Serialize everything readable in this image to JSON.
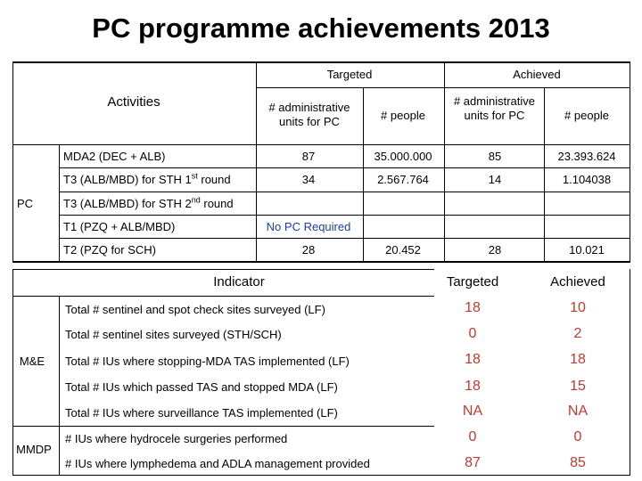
{
  "title": "PC programme achievements 2013",
  "pc_table": {
    "header": {
      "activities": "Activities",
      "targeted": "Targeted",
      "achieved": "Achieved",
      "admin_units": "# administrative units for PC",
      "people": "# people"
    },
    "section_label": "PC",
    "rows": [
      {
        "activity": "MDA2 (DEC + ALB)",
        "t_units": "87",
        "t_people": "35.000.000",
        "a_units": "85",
        "a_people": "23.393.624"
      },
      {
        "activity_pre": "T3 (ALB/MBD) for STH 1",
        "activity_sup": "st",
        "activity_post": " round",
        "t_units": "34",
        "t_people": "2.567.764",
        "a_units": "14",
        "a_people": "1.104038"
      },
      {
        "activity_pre": "T3 (ALB/MBD) for STH 2",
        "activity_sup": "nd",
        "activity_post": " round"
      },
      {
        "activity": "T1 (PZQ + ALB/MBD)",
        "note": "No PC Required"
      },
      {
        "activity": "T2 (PZQ for SCH)",
        "t_units": "28",
        "t_people": "20.452",
        "a_units": "28",
        "a_people": "10.021"
      }
    ]
  },
  "indicator_table": {
    "header": {
      "indicator": "Indicator",
      "targeted": "Targeted",
      "achieved": "Achieved"
    },
    "me_label": "M&E",
    "mmdp_label": "MMDP",
    "rows": [
      {
        "label": "Total # sentinel and spot check sites surveyed (LF)",
        "targeted": "18",
        "achieved": "10"
      },
      {
        "label": "Total # sentinel sites surveyed (STH/SCH)",
        "targeted": "0",
        "achieved": "2"
      },
      {
        "label": "Total # IUs where stopping-MDA TAS implemented (LF)",
        "targeted": "18",
        "achieved": "18"
      },
      {
        "label": "Total # IUs which passed TAS and stopped MDA (LF)",
        "targeted": "18",
        "achieved": "15"
      },
      {
        "label": "Total # IUs where surveillance TAS implemented (LF)",
        "targeted": "NA",
        "achieved": "NA"
      },
      {
        "label": "# IUs where hydrocele surgeries performed",
        "targeted": "0",
        "achieved": "0"
      },
      {
        "label": "# IUs where lymphedema and ADLA management provided",
        "targeted": "87",
        "achieved": "85"
      }
    ]
  }
}
